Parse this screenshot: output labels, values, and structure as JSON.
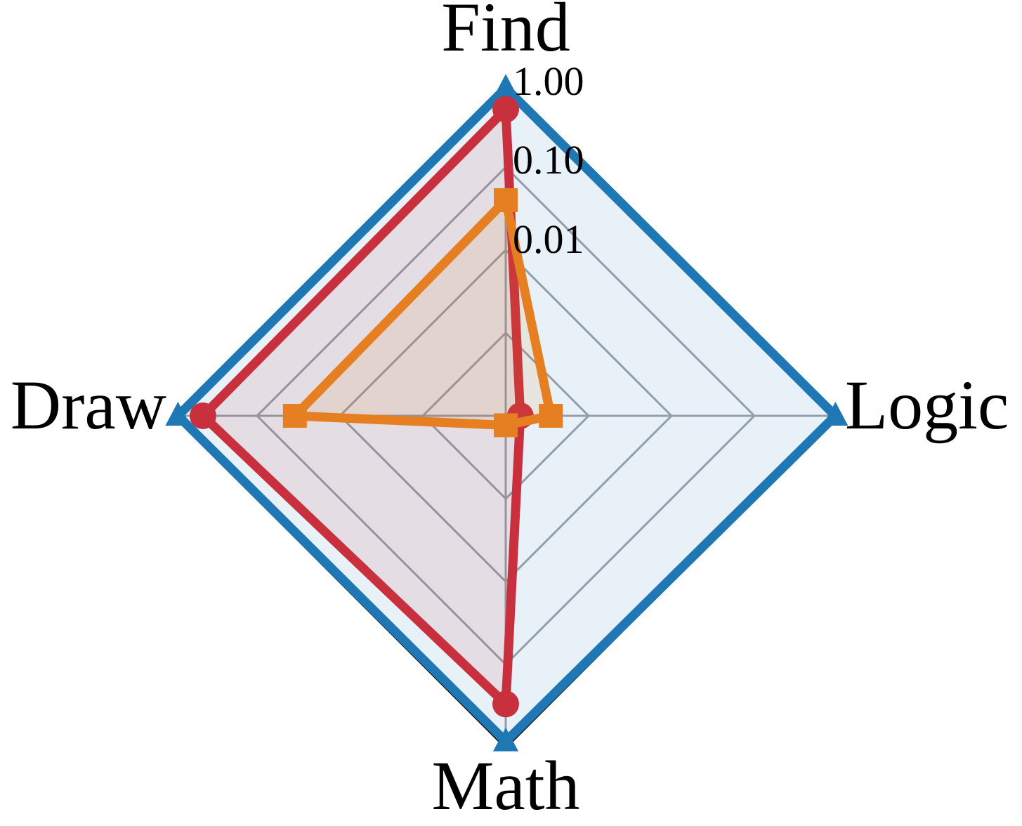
{
  "chart_data": {
    "type": "radar",
    "axes": [
      "Find",
      "Logic",
      "Math",
      "Draw"
    ],
    "scale": "log",
    "range": [
      0.0001,
      1
    ],
    "ticks": [
      {
        "value": 1,
        "label": "1.00"
      },
      {
        "value": 0.1,
        "label": "0.10"
      },
      {
        "value": 0.01,
        "label": "0.01"
      }
    ],
    "grid": true,
    "colors": {
      "blue": "#1f77b4",
      "red": "#c9303e",
      "orange": "#e67e22",
      "grid": "#a0a4aa"
    },
    "series": [
      {
        "color": "#1f77b4",
        "marker": "triangle",
        "values": [
          0.9,
          0.95,
          0.85,
          0.9
        ]
      },
      {
        "color": "#c9303e",
        "marker": "circle",
        "values": [
          0.5,
          0.00015,
          0.3,
          0.45
        ]
      },
      {
        "color": "#e67e22",
        "marker": "square",
        "values": [
          0.04,
          0.00035,
          0.00013,
          0.035
        ]
      }
    ]
  }
}
